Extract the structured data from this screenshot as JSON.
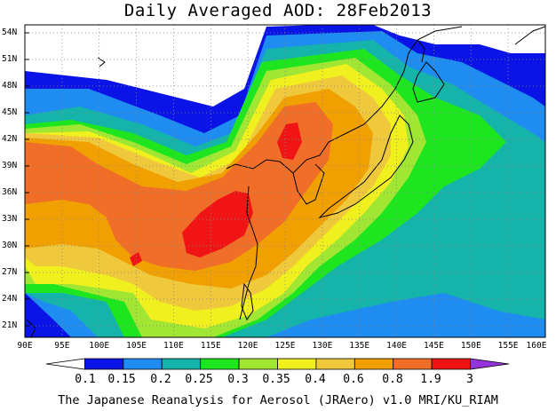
{
  "title": "Daily Averaged AOD: 28Feb2013",
  "credit": "The Japanese Reanalysis for Aerosol (JRAero) v1.0 MRI/KU_RIAM",
  "lat_labels": [
    "54N",
    "51N",
    "48N",
    "45N",
    "42N",
    "39N",
    "36N",
    "33N",
    "30N",
    "27N",
    "24N",
    "21N"
  ],
  "lon_labels": [
    "90E",
    "95E",
    "100E",
    "105E",
    "110E",
    "115E",
    "120E",
    "125E",
    "130E",
    "135E",
    "140E",
    "145E",
    "150E",
    "155E",
    "160E"
  ],
  "colorbar": {
    "labels": [
      "0.1",
      "0.15",
      "0.2",
      "0.25",
      "0.3",
      "0.35",
      "0.4",
      "0.6",
      "0.8",
      "1.9",
      "3"
    ],
    "colors": [
      "#ffffff",
      "#0a14e6",
      "#1e8cf0",
      "#14b4aa",
      "#1ee61e",
      "#a0e632",
      "#f0f01e",
      "#f0c83c",
      "#f0a000",
      "#f06e28",
      "#f01414",
      "#9632dc"
    ]
  },
  "map": {
    "colors": {
      "blue": "#0a14e6",
      "lightblue": "#1e8cf0",
      "teal": "#14b4aa",
      "green": "#1ee61e",
      "yellowgreen": "#a0e632",
      "yellow": "#f0f01e",
      "lightorange": "#f0c83c",
      "orange": "#f0a000",
      "darkorange": "#f06e28",
      "red": "#f01414"
    }
  }
}
